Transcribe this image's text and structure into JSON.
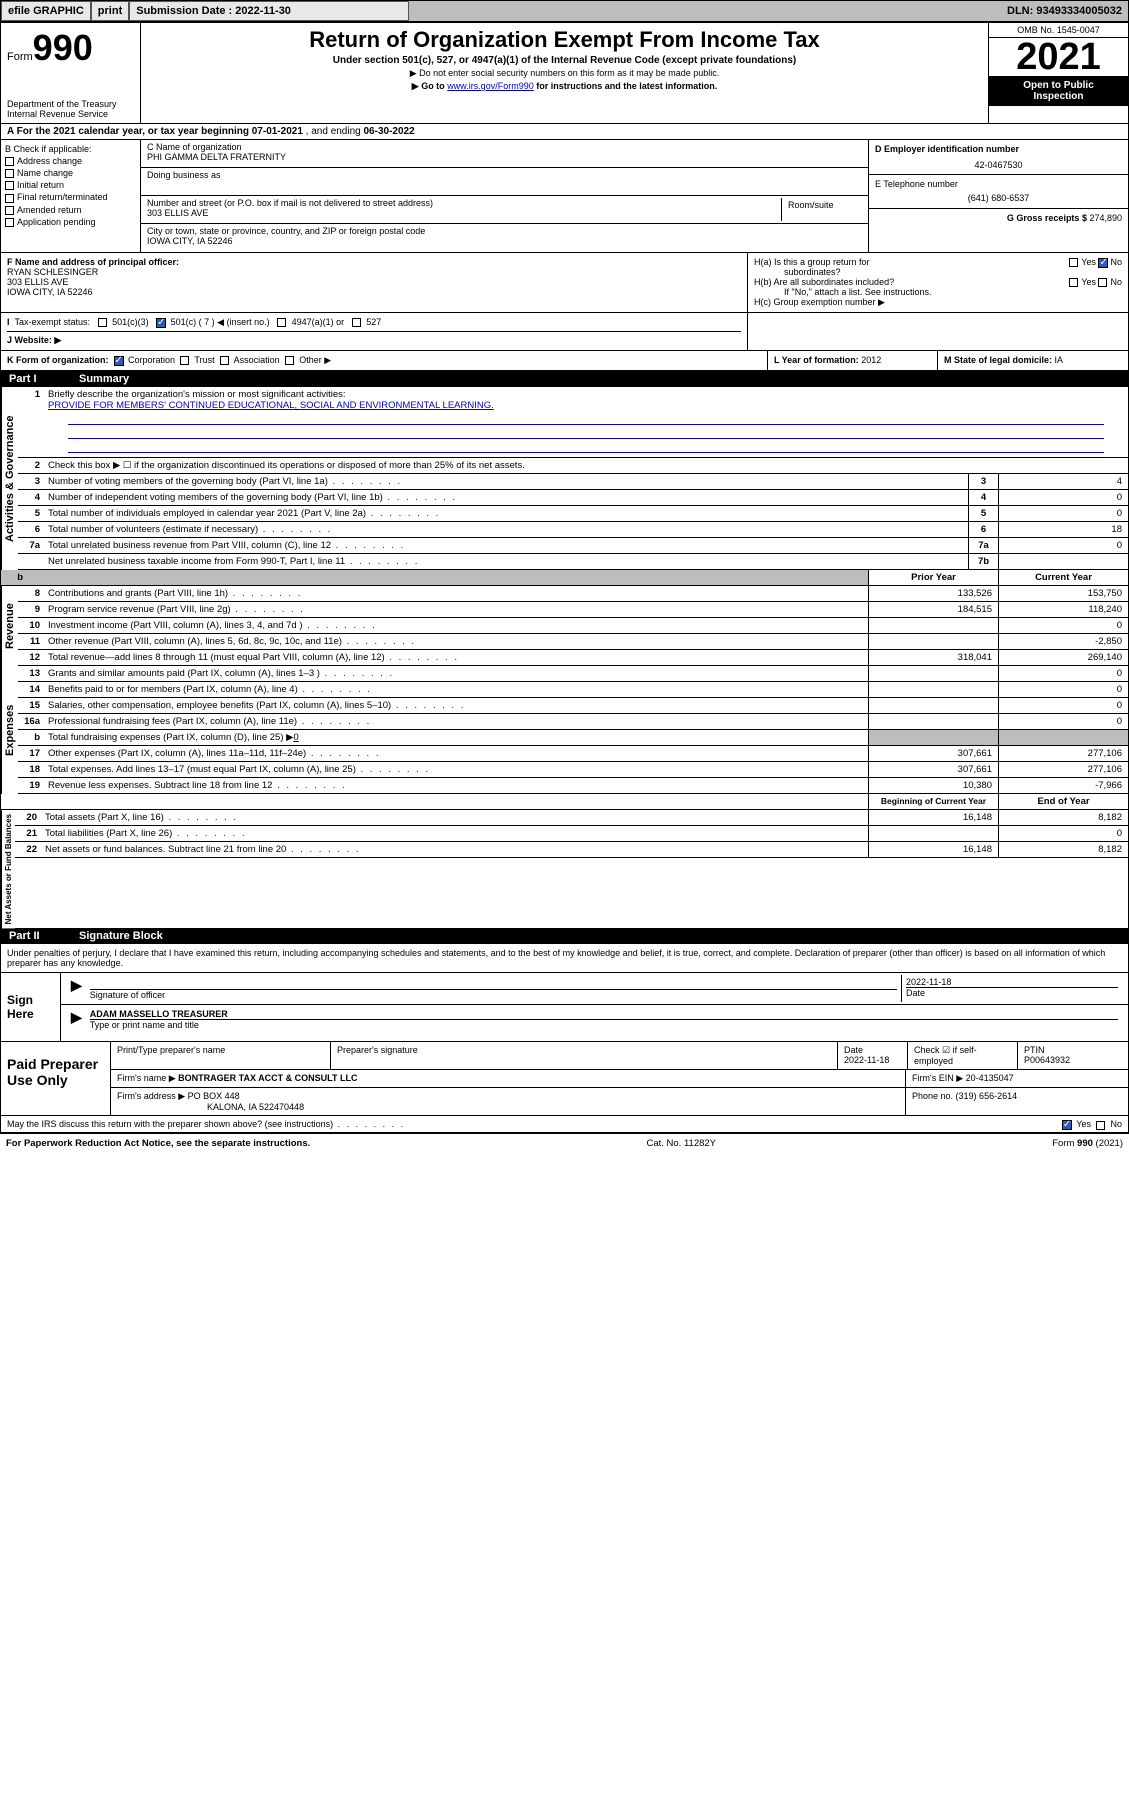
{
  "topbar": {
    "efile_label": "efile GRAPHIC",
    "print_label": "print",
    "submission_label": "Submission Date : 2022-11-30",
    "dln_label": "DLN: 93493334005032"
  },
  "header": {
    "form_prefix": "Form",
    "form_number": "990",
    "dept1": "Department of the Treasury",
    "dept2": "Internal Revenue Service",
    "title": "Return of Organization Exempt From Income Tax",
    "subtitle": "Under section 501(c), 527, or 4947(a)(1) of the Internal Revenue Code (except private foundations)",
    "note1": "▶ Do not enter social security numbers on this form as it may be made public.",
    "note2_pre": "▶ Go to ",
    "note2_link": "www.irs.gov/Form990",
    "note2_post": " for instructions and the latest information.",
    "omb": "OMB No. 1545-0047",
    "year": "2021",
    "inspect1": "Open to Public",
    "inspect2": "Inspection"
  },
  "sectionA": {
    "prefix": "A For the 2021 calendar year, or tax year beginning ",
    "begin": "07-01-2021",
    "mid": " , and ending ",
    "end": "06-30-2022"
  },
  "colB": {
    "label": "B Check if applicable:",
    "items": [
      "Address change",
      "Name change",
      "Initial return",
      "Final return/terminated",
      "Amended return",
      "Application pending"
    ]
  },
  "colC": {
    "name_label": "C Name of organization",
    "name": "PHI GAMMA DELTA FRATERNITY",
    "dba_label": "Doing business as",
    "addr_label": "Number and street (or P.O. box if mail is not delivered to street address)",
    "room_label": "Room/suite",
    "addr": "303 ELLIS AVE",
    "city_label": "City or town, state or province, country, and ZIP or foreign postal code",
    "city": "IOWA CITY, IA  52246"
  },
  "colDE": {
    "d_label": "D Employer identification number",
    "ein": "42-0467530",
    "e_label": "E Telephone number",
    "phone": "(641) 680-6537",
    "g_label": "G Gross receipts $ ",
    "gross": "274,890"
  },
  "rowF": {
    "label": "F Name and address of principal officer:",
    "name": "RYAN SCHLESINGER",
    "addr1": "303 ELLIS AVE",
    "addr2": "IOWA CITY, IA  52246"
  },
  "rowH": {
    "ha1": "H(a)  Is this a group return for",
    "ha2": "subordinates?",
    "hb1": "H(b)  Are all subordinates included?",
    "hb2": "If \"No,\" attach a list. See instructions.",
    "hc": "H(c)  Group exemption number ▶",
    "yes": "Yes",
    "no": "No"
  },
  "rowI": {
    "label": "Tax-exempt status:",
    "opt1": "501(c)(3)",
    "opt2": "501(c) ( 7 ) ◀ (insert no.)",
    "opt3": "4947(a)(1) or",
    "opt4": "527"
  },
  "rowJ": {
    "label": "J   Website: ▶"
  },
  "rowK": {
    "label": "K Form of organization:",
    "opts": [
      "Corporation",
      "Trust",
      "Association",
      "Other ▶"
    ],
    "l_label": "L Year of formation: ",
    "l_val": "2012",
    "m_label": "M State of legal domicile: ",
    "m_val": "IA"
  },
  "part1": {
    "label": "Part I",
    "title": "Summary",
    "vtab_gov": "Activities & Governance",
    "vtab_rev": "Revenue",
    "vtab_exp": "Expenses",
    "vtab_net": "Net Assets or Fund Balances",
    "line1_label": "Briefly describe the organization's mission or most significant activities:",
    "line1_val": "PROVIDE FOR MEMBERS' CONTINUED EDUCATIONAL, SOCIAL AND ENVIRONMENTAL LEARNING.",
    "line2": "Check this box ▶ ☐  if the organization discontinued its operations or disposed of more than 25% of its net assets.",
    "rows_gov": [
      {
        "n": "3",
        "t": "Number of voting members of the governing body (Part VI, line 1a)",
        "box": "3",
        "v": "4"
      },
      {
        "n": "4",
        "t": "Number of independent voting members of the governing body (Part VI, line 1b)",
        "box": "4",
        "v": "0"
      },
      {
        "n": "5",
        "t": "Total number of individuals employed in calendar year 2021 (Part V, line 2a)",
        "box": "5",
        "v": "0"
      },
      {
        "n": "6",
        "t": "Total number of volunteers (estimate if necessary)",
        "box": "6",
        "v": "18"
      },
      {
        "n": "7a",
        "t": "Total unrelated business revenue from Part VIII, column (C), line 12",
        "box": "7a",
        "v": "0"
      },
      {
        "n": "",
        "t": "Net unrelated business taxable income from Form 990-T, Part I, line 11",
        "box": "7b",
        "v": ""
      }
    ],
    "col_prior": "Prior Year",
    "col_current": "Current Year",
    "rows_rev": [
      {
        "n": "8",
        "t": "Contributions and grants (Part VIII, line 1h)",
        "p": "133,526",
        "c": "153,750"
      },
      {
        "n": "9",
        "t": "Program service revenue (Part VIII, line 2g)",
        "p": "184,515",
        "c": "118,240"
      },
      {
        "n": "10",
        "t": "Investment income (Part VIII, column (A), lines 3, 4, and 7d )",
        "p": "",
        "c": "0"
      },
      {
        "n": "11",
        "t": "Other revenue (Part VIII, column (A), lines 5, 6d, 8c, 9c, 10c, and 11e)",
        "p": "",
        "c": "-2,850"
      },
      {
        "n": "12",
        "t": "Total revenue—add lines 8 through 11 (must equal Part VIII, column (A), line 12)",
        "p": "318,041",
        "c": "269,140"
      }
    ],
    "rows_exp": [
      {
        "n": "13",
        "t": "Grants and similar amounts paid (Part IX, column (A), lines 1–3 )",
        "p": "",
        "c": "0"
      },
      {
        "n": "14",
        "t": "Benefits paid to or for members (Part IX, column (A), line 4)",
        "p": "",
        "c": "0"
      },
      {
        "n": "15",
        "t": "Salaries, other compensation, employee benefits (Part IX, column (A), lines 5–10)",
        "p": "",
        "c": "0"
      },
      {
        "n": "16a",
        "t": "Professional fundraising fees (Part IX, column (A), line 11e)",
        "p": "",
        "c": "0"
      }
    ],
    "line_b": "Total fundraising expenses (Part IX, column (D), line 25) ▶",
    "line_b_val": "0",
    "rows_exp2": [
      {
        "n": "17",
        "t": "Other expenses (Part IX, column (A), lines 11a–11d, 11f–24e)",
        "p": "307,661",
        "c": "277,106"
      },
      {
        "n": "18",
        "t": "Total expenses. Add lines 13–17 (must equal Part IX, column (A), line 25)",
        "p": "307,661",
        "c": "277,106"
      },
      {
        "n": "19",
        "t": "Revenue less expenses. Subtract line 18 from line 12",
        "p": "10,380",
        "c": "-7,966"
      }
    ],
    "col_begin": "Beginning of Current Year",
    "col_end": "End of Year",
    "rows_net": [
      {
        "n": "20",
        "t": "Total assets (Part X, line 16)",
        "p": "16,148",
        "c": "8,182"
      },
      {
        "n": "21",
        "t": "Total liabilities (Part X, line 26)",
        "p": "",
        "c": "0"
      },
      {
        "n": "22",
        "t": "Net assets or fund balances. Subtract line 21 from line 20",
        "p": "16,148",
        "c": "8,182"
      }
    ]
  },
  "part2": {
    "label": "Part II",
    "title": "Signature Block",
    "decl": "Under penalties of perjury, I declare that I have examined this return, including accompanying schedules and statements, and to the best of my knowledge and belief, it is true, correct, and complete. Declaration of preparer (other than officer) is based on all information of which preparer has any knowledge.",
    "sign_here": "Sign Here",
    "sig_officer": "Signature of officer",
    "sig_date": "2022-11-18",
    "date_label": "Date",
    "officer_name": "ADAM MASSELLO TREASURER",
    "type_label": "Type or print name and title",
    "paid_label": "Paid Preparer Use Only",
    "prep_name_label": "Print/Type preparer's name",
    "prep_sig_label": "Preparer's signature",
    "prep_date_label": "Date",
    "prep_date": "2022-11-18",
    "self_emp_label": "Check ☑ if self-employed",
    "ptin_label": "PTIN",
    "ptin": "P00643932",
    "firm_name_label": "Firm's name    ▶ ",
    "firm_name": "BONTRAGER TAX ACCT & CONSULT LLC",
    "firm_ein_label": "Firm's EIN ▶ ",
    "firm_ein": "20-4135047",
    "firm_addr_label": "Firm's address ▶ ",
    "firm_addr1": "PO BOX 448",
    "firm_addr2": "KALONA, IA  522470448",
    "firm_phone_label": "Phone no. ",
    "firm_phone": "(319) 656-2614",
    "discuss": "May the IRS discuss this return with the preparer shown above? (see instructions)",
    "yes": "Yes",
    "no": "No"
  },
  "footer": {
    "left": "For Paperwork Reduction Act Notice, see the separate instructions.",
    "mid": "Cat. No. 11282Y",
    "right_pre": "Form ",
    "right_b": "990",
    "right_post": " (2021)"
  }
}
